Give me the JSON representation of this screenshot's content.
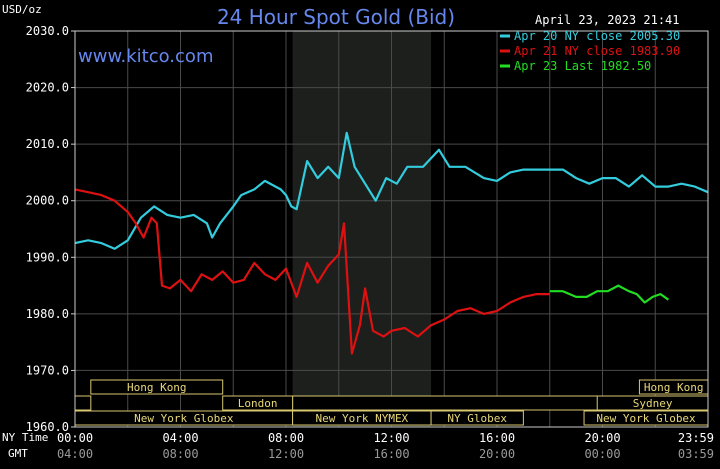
{
  "chart_data": {
    "type": "line",
    "title": "24 Hour Spot Gold (Bid)",
    "ylabel": "USD/oz",
    "timestamp": "April 23, 2023 21:41",
    "watermark": "www.kitco.com",
    "ylim": [
      1960,
      2030
    ],
    "yticks": [
      "2030.0",
      "2020.0",
      "2010.0",
      "2000.0",
      "1990.0",
      "1980.0",
      "1970.0",
      "1960.0"
    ],
    "xlim": [
      0,
      24
    ],
    "ny_time_label": "NY Time",
    "gmt_label": "GMT",
    "ny_ticks": [
      "00:00",
      "04:00",
      "08:00",
      "12:00",
      "16:00",
      "20:00",
      "23:59"
    ],
    "gmt_ticks": [
      "04:00",
      "08:00",
      "12:00",
      "16:00",
      "20:00",
      "00:00",
      "03:59"
    ],
    "shaded_hours": [
      8.25,
      13.5
    ],
    "legend": [
      {
        "label": "Apr 20 NY close 2005.30",
        "color": "#33ccdd"
      },
      {
        "label": "Apr 21 NY close 1983.90",
        "color": "#dd1111"
      },
      {
        "label": "Apr 23 Last 1982.50",
        "color": "#22dd22"
      }
    ],
    "sessions": [
      {
        "label": "Hong Kong",
        "row": 0,
        "start": 0.6,
        "end": 5.6
      },
      {
        "label": "London",
        "row": 1,
        "start": 5.6,
        "end": 8.25
      },
      {
        "label": "Hong Kong",
        "row": 0,
        "start": 21.4,
        "end": 24
      },
      {
        "label": "Sydney",
        "row": 1,
        "start": 19.8,
        "end": 24
      },
      {
        "label": "New York Globex",
        "row": 2,
        "start": 0,
        "end": 8.25
      },
      {
        "label": "New York NYMEX",
        "row": 2,
        "start": 8.25,
        "end": 13.5
      },
      {
        "label": "NY Globex",
        "row": 2,
        "start": 13.5,
        "end": 17
      },
      {
        "label": "New York Globex",
        "row": 2,
        "start": 19.3,
        "end": 24
      }
    ],
    "session_blanks": [
      {
        "row": 1,
        "start": 0,
        "end": 0.6
      },
      {
        "row": 1,
        "start": 8.25,
        "end": 24
      }
    ],
    "series": [
      {
        "name": "Apr 20",
        "color": "#33ccdd",
        "points": [
          [
            0,
            1992.5
          ],
          [
            0.5,
            1993
          ],
          [
            1,
            1992.5
          ],
          [
            1.5,
            1991.5
          ],
          [
            2,
            1993
          ],
          [
            2.5,
            1997
          ],
          [
            3,
            1999
          ],
          [
            3.5,
            1997.5
          ],
          [
            4,
            1997
          ],
          [
            4.5,
            1997.5
          ],
          [
            5,
            1996
          ],
          [
            5.2,
            1993.5
          ],
          [
            5.5,
            1996
          ],
          [
            6,
            1999
          ],
          [
            6.3,
            2001
          ],
          [
            6.8,
            2002
          ],
          [
            7.2,
            2003.5
          ],
          [
            7.8,
            2002
          ],
          [
            8,
            2001
          ],
          [
            8.2,
            1999
          ],
          [
            8.4,
            1998.5
          ],
          [
            8.8,
            2007
          ],
          [
            9.2,
            2004
          ],
          [
            9.6,
            2006
          ],
          [
            10,
            2004
          ],
          [
            10.3,
            2012
          ],
          [
            10.6,
            2006
          ],
          [
            11,
            2003
          ],
          [
            11.4,
            2000
          ],
          [
            11.8,
            2004
          ],
          [
            12.2,
            2003
          ],
          [
            12.6,
            2006
          ],
          [
            13.2,
            2006
          ],
          [
            13.8,
            2009
          ],
          [
            14.2,
            2006
          ],
          [
            14.8,
            2006
          ],
          [
            15.5,
            2004
          ],
          [
            16,
            2003.5
          ],
          [
            16.5,
            2005
          ],
          [
            17,
            2005.5
          ],
          [
            17.5,
            2005.5
          ],
          [
            18,
            2005.5
          ],
          [
            18.5,
            2005.5
          ],
          [
            19,
            2004
          ],
          [
            19.5,
            2003
          ],
          [
            20,
            2004
          ],
          [
            20.5,
            2004
          ],
          [
            21,
            2002.5
          ],
          [
            21.5,
            2004.5
          ],
          [
            22,
            2002.5
          ],
          [
            22.5,
            2002.5
          ],
          [
            23,
            2003
          ],
          [
            23.5,
            2002.5
          ],
          [
            24,
            2001.5
          ]
        ]
      },
      {
        "name": "Apr 21",
        "color": "#dd1111",
        "points": [
          [
            0,
            2002
          ],
          [
            0.5,
            2001.5
          ],
          [
            1,
            2001
          ],
          [
            1.5,
            2000
          ],
          [
            2,
            1998
          ],
          [
            2.3,
            1996
          ],
          [
            2.6,
            1993.5
          ],
          [
            2.9,
            1997
          ],
          [
            3.1,
            1996
          ],
          [
            3.3,
            1985
          ],
          [
            3.6,
            1984.5
          ],
          [
            4,
            1986
          ],
          [
            4.4,
            1984
          ],
          [
            4.8,
            1987
          ],
          [
            5.2,
            1986
          ],
          [
            5.6,
            1987.5
          ],
          [
            6,
            1985.5
          ],
          [
            6.4,
            1986
          ],
          [
            6.8,
            1989
          ],
          [
            7.2,
            1987
          ],
          [
            7.6,
            1986
          ],
          [
            8,
            1988
          ],
          [
            8.4,
            1983
          ],
          [
            8.8,
            1989
          ],
          [
            9.2,
            1985.5
          ],
          [
            9.6,
            1988.5
          ],
          [
            10,
            1990.5
          ],
          [
            10.2,
            1996
          ],
          [
            10.5,
            1973
          ],
          [
            10.8,
            1978
          ],
          [
            11,
            1984.5
          ],
          [
            11.3,
            1977
          ],
          [
            11.7,
            1976
          ],
          [
            12,
            1977
          ],
          [
            12.5,
            1977.5
          ],
          [
            13,
            1976
          ],
          [
            13.5,
            1978
          ],
          [
            14,
            1979
          ],
          [
            14.5,
            1980.5
          ],
          [
            15,
            1981
          ],
          [
            15.5,
            1980
          ],
          [
            16,
            1980.5
          ],
          [
            16.5,
            1982
          ],
          [
            17,
            1983
          ],
          [
            17.5,
            1983.5
          ],
          [
            18,
            1983.5
          ]
        ]
      },
      {
        "name": "Apr 23",
        "color": "#22dd22",
        "points": [
          [
            18,
            1984
          ],
          [
            18.5,
            1984
          ],
          [
            19,
            1983
          ],
          [
            19.4,
            1983
          ],
          [
            19.8,
            1984
          ],
          [
            20.2,
            1984
          ],
          [
            20.6,
            1985
          ],
          [
            21,
            1984
          ],
          [
            21.3,
            1983.5
          ],
          [
            21.6,
            1982
          ],
          [
            21.9,
            1983
          ],
          [
            22.2,
            1983.5
          ],
          [
            22.5,
            1982.5
          ]
        ]
      }
    ]
  }
}
